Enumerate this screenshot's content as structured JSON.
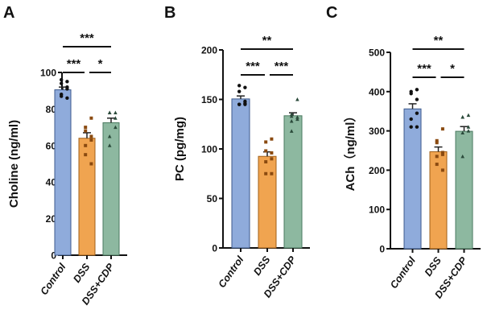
{
  "chart_data": [
    {
      "panel": "A",
      "type": "bar",
      "ylabel": "Choline (ng/ml)",
      "ylim": [
        0,
        100
      ],
      "yticks": [
        0,
        20,
        40,
        60,
        80,
        100
      ],
      "categories": [
        "Control",
        "DSS",
        "DSS+CDP"
      ],
      "values": [
        90.5,
        64,
        72.5
      ],
      "sem": [
        1.5,
        3,
        2.5
      ],
      "points": [
        [
          95,
          96,
          94,
          92,
          91,
          88,
          87,
          86
        ],
        [
          75,
          70,
          68,
          65,
          63,
          60,
          55,
          50
        ],
        [
          78,
          78,
          78,
          75,
          70,
          65,
          60
        ]
      ],
      "significance": [
        {
          "from": 0,
          "to": 2,
          "label": "***",
          "level": 2
        },
        {
          "from": 0,
          "to": 1,
          "label": "***",
          "level": 1
        },
        {
          "from": 1,
          "to": 2,
          "label": "*",
          "level": 1
        }
      ]
    },
    {
      "panel": "B",
      "type": "bar",
      "ylabel": "PC (pg/mg)",
      "ylim": [
        0,
        200
      ],
      "yticks": [
        0,
        50,
        100,
        150,
        200
      ],
      "categories": [
        "Control",
        "DSS",
        "DSS+CDP"
      ],
      "values": [
        150.5,
        92.5,
        133.5
      ],
      "sem": [
        3,
        4.5,
        3
      ],
      "points": [
        [
          162,
          164,
          158,
          146,
          145,
          145,
          145,
          148
        ],
        [
          110,
          107,
          98,
          96,
          90,
          87,
          75,
          75
        ],
        [
          150,
          135,
          133,
          132,
          130,
          128,
          118
        ]
      ],
      "significance": [
        {
          "from": 0,
          "to": 2,
          "label": "**",
          "level": 2
        },
        {
          "from": 0,
          "to": 1,
          "label": "***",
          "level": 1
        },
        {
          "from": 1,
          "to": 2,
          "label": "***",
          "level": 1
        }
      ]
    },
    {
      "panel": "C",
      "type": "bar",
      "ylabel": "ACh（ng/ml）",
      "ylim": [
        0,
        500
      ],
      "yticks": [
        0,
        100,
        200,
        300,
        400,
        500
      ],
      "categories": [
        "Control",
        "DSS",
        "DSS+CDP"
      ],
      "values": [
        356,
        247,
        299
      ],
      "sem": [
        13,
        12,
        12
      ],
      "points": [
        [
          405,
          400,
          395,
          380,
          345,
          330,
          310,
          310
        ],
        [
          305,
          275,
          270,
          245,
          240,
          235,
          215,
          200
        ],
        [
          340,
          335,
          335,
          310,
          300,
          295,
          235
        ]
      ],
      "significance": [
        {
          "from": 0,
          "to": 2,
          "label": "**",
          "level": 2
        },
        {
          "from": 0,
          "to": 1,
          "label": "***",
          "level": 1
        },
        {
          "from": 1,
          "to": 2,
          "label": "*",
          "level": 1
        }
      ]
    }
  ],
  "colors": {
    "bars": [
      "#8fabdb",
      "#f0a450",
      "#8db8a0"
    ],
    "bar_edges": [
      "#3d5a8c",
      "#a0601a",
      "#4a7a60"
    ],
    "points": [
      "#111111",
      "#8a4a10",
      "#2a4a3a"
    ]
  },
  "markers": [
    "circle",
    "square",
    "triangle"
  ]
}
